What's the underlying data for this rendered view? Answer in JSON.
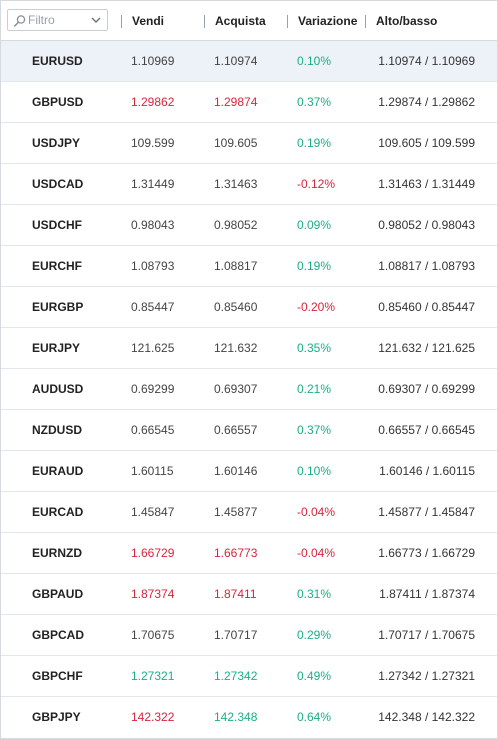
{
  "filter": {
    "placeholder": "Filtro"
  },
  "header": {
    "sell": "Vendi",
    "buy": "Acquista",
    "change": "Variazione",
    "high_low": "Alto/basso"
  },
  "colors": {
    "up": "#1aaf85",
    "down": "#d8243c",
    "neutral": "#444444",
    "selected_row": "#edf1f8"
  },
  "rows": [
    {
      "symbol": "EURUSD",
      "sell": "1.10969",
      "sell_dir": "neutral",
      "buy": "1.10974",
      "buy_dir": "neutral",
      "change": "0.10%",
      "change_dir": "up",
      "high_low": "1.10974 / 1.10969",
      "selected": true
    },
    {
      "symbol": "GBPUSD",
      "sell": "1.29862",
      "sell_dir": "down",
      "buy": "1.29874",
      "buy_dir": "down",
      "change": "0.37%",
      "change_dir": "up",
      "high_low": "1.29874 / 1.29862"
    },
    {
      "symbol": "USDJPY",
      "sell": "109.599",
      "sell_dir": "neutral",
      "buy": "109.605",
      "buy_dir": "neutral",
      "change": "0.19%",
      "change_dir": "up",
      "high_low": "109.605 / 109.599"
    },
    {
      "symbol": "USDCAD",
      "sell": "1.31449",
      "sell_dir": "neutral",
      "buy": "1.31463",
      "buy_dir": "neutral",
      "change": "-0.12%",
      "change_dir": "down",
      "high_low": "1.31463 / 1.31449"
    },
    {
      "symbol": "USDCHF",
      "sell": "0.98043",
      "sell_dir": "neutral",
      "buy": "0.98052",
      "buy_dir": "neutral",
      "change": "0.09%",
      "change_dir": "up",
      "high_low": "0.98052 / 0.98043"
    },
    {
      "symbol": "EURCHF",
      "sell": "1.08793",
      "sell_dir": "neutral",
      "buy": "1.08817",
      "buy_dir": "neutral",
      "change": "0.19%",
      "change_dir": "up",
      "high_low": "1.08817 / 1.08793"
    },
    {
      "symbol": "EURGBP",
      "sell": "0.85447",
      "sell_dir": "neutral",
      "buy": "0.85460",
      "buy_dir": "neutral",
      "change": "-0.20%",
      "change_dir": "down",
      "high_low": "0.85460 / 0.85447"
    },
    {
      "symbol": "EURJPY",
      "sell": "121.625",
      "sell_dir": "neutral",
      "buy": "121.632",
      "buy_dir": "neutral",
      "change": "0.35%",
      "change_dir": "up",
      "high_low": "121.632 / 121.625"
    },
    {
      "symbol": "AUDUSD",
      "sell": "0.69299",
      "sell_dir": "neutral",
      "buy": "0.69307",
      "buy_dir": "neutral",
      "change": "0.21%",
      "change_dir": "up",
      "high_low": "0.69307 / 0.69299"
    },
    {
      "symbol": "NZDUSD",
      "sell": "0.66545",
      "sell_dir": "neutral",
      "buy": "0.66557",
      "buy_dir": "neutral",
      "change": "0.37%",
      "change_dir": "up",
      "high_low": "0.66557 / 0.66545"
    },
    {
      "symbol": "EURAUD",
      "sell": "1.60115",
      "sell_dir": "neutral",
      "buy": "1.60146",
      "buy_dir": "neutral",
      "change": "0.10%",
      "change_dir": "up",
      "high_low": "1.60146 / 1.60115"
    },
    {
      "symbol": "EURCAD",
      "sell": "1.45847",
      "sell_dir": "neutral",
      "buy": "1.45877",
      "buy_dir": "neutral",
      "change": "-0.04%",
      "change_dir": "down",
      "high_low": "1.45877 / 1.45847"
    },
    {
      "symbol": "EURNZD",
      "sell": "1.66729",
      "sell_dir": "down",
      "buy": "1.66773",
      "buy_dir": "down",
      "change": "-0.04%",
      "change_dir": "down",
      "high_low": "1.66773 / 1.66729"
    },
    {
      "symbol": "GBPAUD",
      "sell": "1.87374",
      "sell_dir": "down",
      "buy": "1.87411",
      "buy_dir": "down",
      "change": "0.31%",
      "change_dir": "up",
      "high_low": "1.87411 / 1.87374"
    },
    {
      "symbol": "GBPCAD",
      "sell": "1.70675",
      "sell_dir": "neutral",
      "buy": "1.70717",
      "buy_dir": "neutral",
      "change": "0.29%",
      "change_dir": "up",
      "high_low": "1.70717 / 1.70675"
    },
    {
      "symbol": "GBPCHF",
      "sell": "1.27321",
      "sell_dir": "up",
      "buy": "1.27342",
      "buy_dir": "up",
      "change": "0.49%",
      "change_dir": "up",
      "high_low": "1.27342 / 1.27321"
    },
    {
      "symbol": "GBPJPY",
      "sell": "142.322",
      "sell_dir": "down",
      "buy": "142.348",
      "buy_dir": "up",
      "change": "0.64%",
      "change_dir": "up",
      "high_low": "142.348 / 142.322"
    }
  ]
}
